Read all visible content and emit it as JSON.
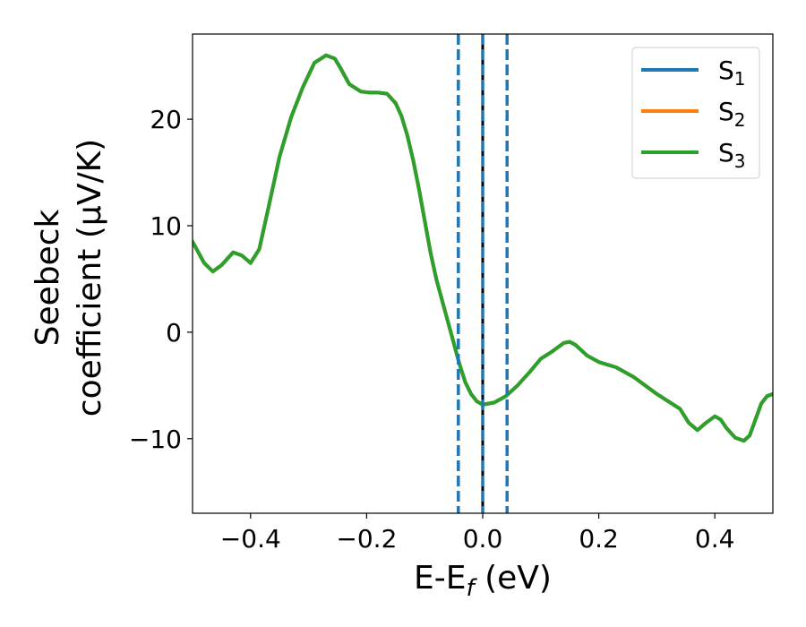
{
  "chart_data": {
    "type": "line",
    "title": "",
    "xlabel": "E-E",
    "xlabel_sub": "f",
    "xlabel_suffix": " (eV)",
    "ylabel_line1": "Seebeck",
    "ylabel_line2": "coefficient  (μV/K)",
    "xlim": [
      -0.5,
      0.5
    ],
    "ylim": [
      -17,
      28
    ],
    "xticks": [
      -0.4,
      -0.2,
      0.0,
      0.2,
      0.4
    ],
    "xtick_labels": [
      "−0.4",
      "−0.2",
      "0.0",
      "0.2",
      "0.4"
    ],
    "yticks": [
      -10,
      0,
      10,
      20
    ],
    "ytick_labels": [
      "−10",
      "0",
      "10",
      "20"
    ],
    "grid": false,
    "legend_position": "top-right",
    "vlines": [
      {
        "x": 0.0,
        "style": "solid",
        "color": "#000000"
      },
      {
        "x": -0.042,
        "style": "dashed",
        "color": "#1f77b4"
      },
      {
        "x": 0.0,
        "style": "dashed",
        "color": "#1f77b4"
      },
      {
        "x": 0.042,
        "style": "dashed",
        "color": "#1f77b4"
      }
    ],
    "x": [
      -0.5,
      -0.48,
      -0.465,
      -0.45,
      -0.43,
      -0.415,
      -0.4,
      -0.385,
      -0.37,
      -0.35,
      -0.33,
      -0.31,
      -0.29,
      -0.27,
      -0.255,
      -0.245,
      -0.23,
      -0.21,
      -0.195,
      -0.18,
      -0.165,
      -0.15,
      -0.14,
      -0.13,
      -0.12,
      -0.11,
      -0.1,
      -0.09,
      -0.08,
      -0.07,
      -0.06,
      -0.05,
      -0.04,
      -0.03,
      -0.02,
      -0.01,
      0.0,
      0.02,
      0.04,
      0.06,
      0.08,
      0.1,
      0.12,
      0.14,
      0.15,
      0.16,
      0.18,
      0.2,
      0.23,
      0.26,
      0.28,
      0.3,
      0.32,
      0.34,
      0.355,
      0.37,
      0.385,
      0.4,
      0.41,
      0.42,
      0.435,
      0.45,
      0.46,
      0.47,
      0.48,
      0.49,
      0.5
    ],
    "series": [
      {
        "name": "S",
        "name_sub": "1",
        "color": "#1f77b4",
        "values": [
          8.5,
          6.5,
          5.7,
          6.3,
          7.5,
          7.2,
          6.5,
          7.8,
          11.5,
          16.5,
          20.2,
          23.0,
          25.3,
          26.0,
          25.7,
          24.8,
          23.3,
          22.6,
          22.5,
          22.5,
          22.4,
          21.5,
          20.3,
          18.5,
          16.2,
          13.5,
          10.5,
          7.5,
          5.0,
          3.0,
          1.0,
          -1.0,
          -3.0,
          -4.7,
          -5.8,
          -6.5,
          -6.8,
          -6.6,
          -6.0,
          -5.0,
          -3.8,
          -2.5,
          -1.8,
          -1.0,
          -0.9,
          -1.2,
          -2.2,
          -2.8,
          -3.3,
          -4.2,
          -5.0,
          -5.8,
          -6.5,
          -7.2,
          -8.5,
          -9.2,
          -8.5,
          -7.9,
          -8.2,
          -9.0,
          -9.9,
          -10.2,
          -9.7,
          -8.2,
          -6.7,
          -6.0,
          -5.8
        ]
      },
      {
        "name": "S",
        "name_sub": "2",
        "color": "#ff7f0e",
        "values": [
          8.5,
          6.5,
          5.7,
          6.3,
          7.5,
          7.2,
          6.5,
          7.8,
          11.5,
          16.5,
          20.2,
          23.0,
          25.3,
          26.0,
          25.7,
          24.8,
          23.3,
          22.6,
          22.5,
          22.5,
          22.4,
          21.5,
          20.3,
          18.5,
          16.2,
          13.5,
          10.5,
          7.5,
          5.0,
          3.0,
          1.0,
          -1.0,
          -3.0,
          -4.7,
          -5.8,
          -6.5,
          -6.8,
          -6.6,
          -6.0,
          -5.0,
          -3.8,
          -2.5,
          -1.8,
          -1.0,
          -0.9,
          -1.2,
          -2.2,
          -2.8,
          -3.3,
          -4.2,
          -5.0,
          -5.8,
          -6.5,
          -7.2,
          -8.5,
          -9.2,
          -8.5,
          -7.9,
          -8.2,
          -9.0,
          -9.9,
          -10.2,
          -9.7,
          -8.2,
          -6.7,
          -6.0,
          -5.8
        ]
      },
      {
        "name": "S",
        "name_sub": "3",
        "color": "#2ca02c",
        "values": [
          8.5,
          6.5,
          5.7,
          6.3,
          7.5,
          7.2,
          6.5,
          7.8,
          11.5,
          16.5,
          20.2,
          23.0,
          25.3,
          26.0,
          25.7,
          24.8,
          23.3,
          22.6,
          22.5,
          22.5,
          22.4,
          21.5,
          20.3,
          18.5,
          16.2,
          13.5,
          10.5,
          7.5,
          5.0,
          3.0,
          1.0,
          -1.0,
          -3.0,
          -4.7,
          -5.8,
          -6.5,
          -6.8,
          -6.6,
          -6.0,
          -5.0,
          -3.8,
          -2.5,
          -1.8,
          -1.0,
          -0.9,
          -1.2,
          -2.2,
          -2.8,
          -3.3,
          -4.2,
          -5.0,
          -5.8,
          -6.5,
          -7.2,
          -8.5,
          -9.2,
          -8.5,
          -7.9,
          -8.2,
          -9.0,
          -9.9,
          -10.2,
          -9.7,
          -8.2,
          -6.7,
          -6.0,
          -5.8
        ]
      }
    ]
  }
}
